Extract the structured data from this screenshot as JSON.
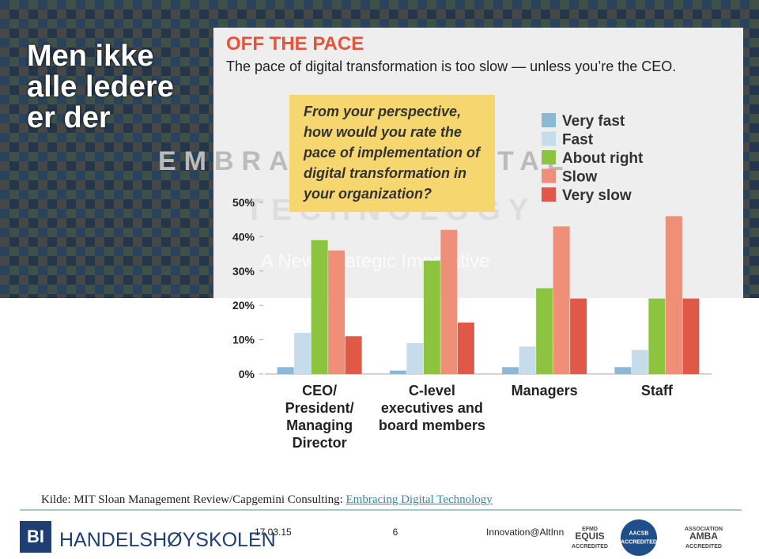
{
  "slide": {
    "title": "Men ikke alle ledere er der",
    "background_text": [
      "EMBRACING DIGITAL",
      "TECHNOLOGY",
      "A New Strategic Imperative"
    ],
    "source": {
      "text": "Kilde: MIT Sloan Management Review/Capgemini Consulting:",
      "link": "Embracing Digital Technology"
    },
    "logo": {
      "mark": "BI",
      "name": "HANDELSHØYSKOLEN"
    },
    "date": "17.03.15",
    "page": "6",
    "contact": "Innovation@AltInn",
    "badges": [
      {
        "lines": [
          "EFMD",
          "EQUIS",
          "ACCREDITED"
        ]
      },
      {
        "lines": [
          "AACSB",
          "ACCREDITED"
        ]
      },
      {
        "lines": [
          "ASSOCIATION",
          "AMBA",
          "ACCREDITED"
        ]
      }
    ]
  },
  "chart_data": {
    "type": "bar",
    "title": "OFF THE PACE",
    "subtitle": "The pace of digital transformation is too slow — unless you’re the CEO.",
    "question": "From your perspective, how would you rate the pace of implementation of digital transformation in your organization?",
    "categories": [
      "CEO/ President/ Managing Director",
      "C-level executives and board members",
      "Managers",
      "Staff"
    ],
    "series": [
      {
        "name": "Very fast",
        "color": "#8bb8d6",
        "values": [
          2,
          1,
          2,
          2
        ]
      },
      {
        "name": "Fast",
        "color": "#c6dcea",
        "values": [
          12,
          9,
          8,
          7
        ]
      },
      {
        "name": "About right",
        "color": "#8cc43f",
        "values": [
          39,
          33,
          25,
          22
        ]
      },
      {
        "name": "Slow",
        "color": "#ef8f78",
        "values": [
          36,
          42,
          43,
          46
        ]
      },
      {
        "name": "Very slow",
        "color": "#e05846",
        "values": [
          11,
          15,
          22,
          22
        ]
      }
    ],
    "ylim": [
      0,
      50
    ],
    "yticks": [
      {
        "value": 0,
        "label": "0%"
      },
      {
        "value": 10,
        "label": "10%"
      },
      {
        "value": 20,
        "label": "20%"
      },
      {
        "value": 30,
        "label": "30%"
      },
      {
        "value": 40,
        "label": "40%"
      },
      {
        "value": 50,
        "label": "50%"
      }
    ],
    "legend": "top-right"
  }
}
